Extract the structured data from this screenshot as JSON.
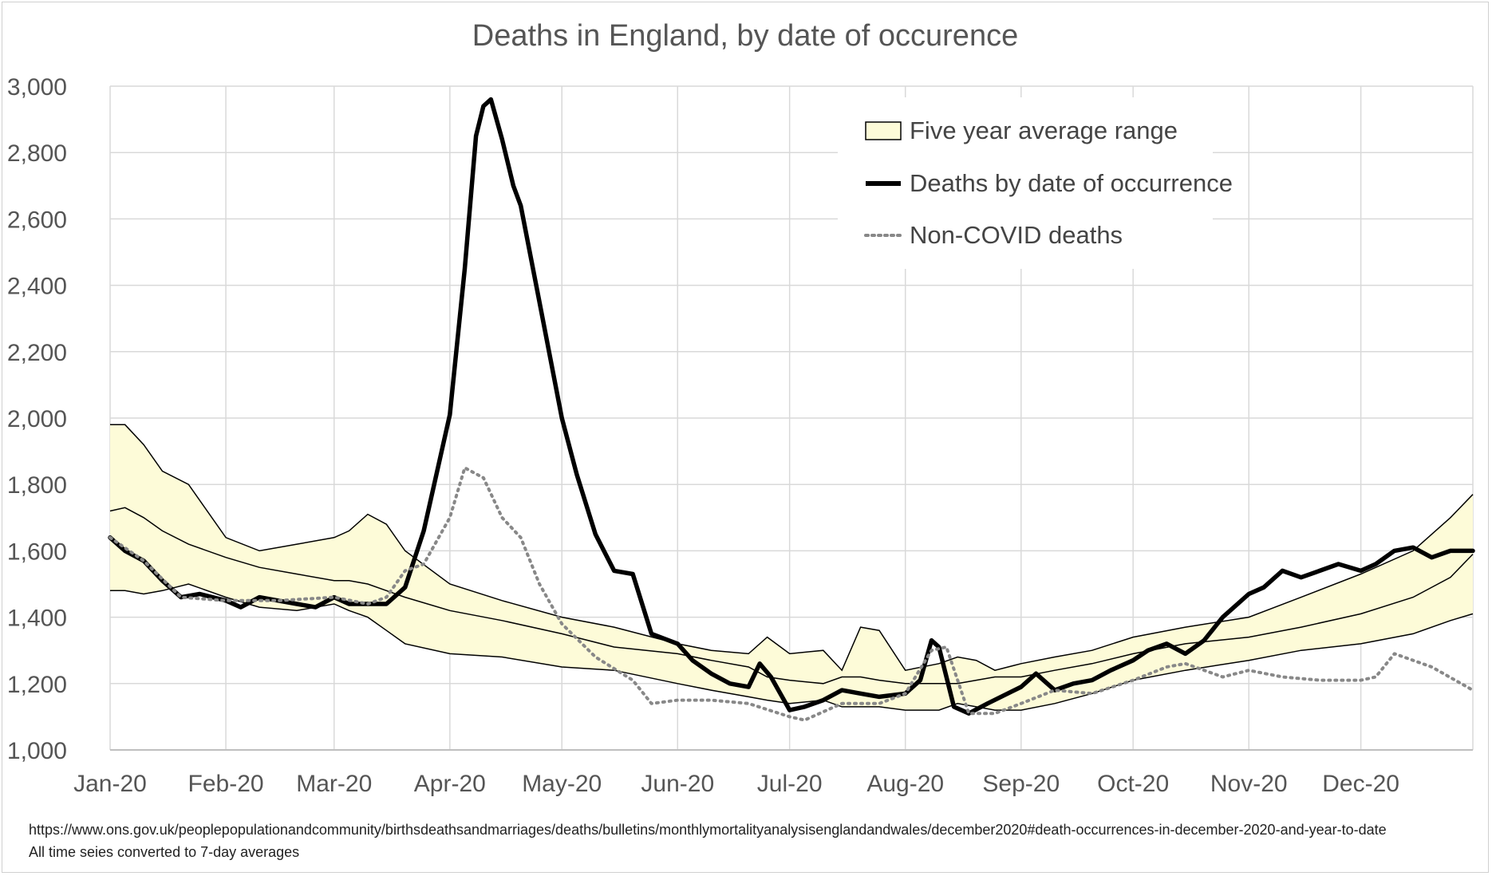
{
  "chart_data": {
    "type": "line",
    "title": "Deaths in England, by date of occurence",
    "xlabel": "",
    "ylabel": "",
    "ylim": [
      1000,
      3000
    ],
    "yticks": [
      1000,
      1200,
      1400,
      1600,
      1800,
      2000,
      2200,
      2400,
      2600,
      2800,
      3000
    ],
    "ytick_labels": [
      "1,000",
      "1,200",
      "1,400",
      "1,600",
      "1,800",
      "2,000",
      "2,200",
      "2,400",
      "2,600",
      "2,800",
      "3,000"
    ],
    "xlim": [
      "2020-01-01",
      "2020-12-31"
    ],
    "xtick_dates": [
      "2020-01-01",
      "2020-02-01",
      "2020-03-01",
      "2020-04-01",
      "2020-05-01",
      "2020-06-01",
      "2020-07-01",
      "2020-08-01",
      "2020-09-01",
      "2020-10-01",
      "2020-11-01",
      "2020-12-01"
    ],
    "xtick_labels": [
      "Jan-20",
      "Feb-20",
      "Mar-20",
      "Apr-20",
      "May-20",
      "Jun-20",
      "Jul-20",
      "Aug-20",
      "Sep-20",
      "Oct-20",
      "Nov-20",
      "Dec-20"
    ],
    "grid": true,
    "legend_position": "top-right",
    "legend": [
      {
        "label": "Five year average range",
        "style": "band"
      },
      {
        "label": "Deaths by date of occurrence",
        "style": "solid"
      },
      {
        "label": "Non-COVID deaths",
        "style": "dotted"
      }
    ],
    "colors": {
      "band_fill": "#fdfbd8",
      "band_edge": "#000000",
      "deaths": "#000000",
      "non_covid": "#888888",
      "grid": "#d9d9d9"
    },
    "series": [
      {
        "name": "Five year average range",
        "kind": "band",
        "x": [
          "2020-01-01",
          "2020-01-05",
          "2020-01-10",
          "2020-01-15",
          "2020-01-22",
          "2020-02-01",
          "2020-02-10",
          "2020-02-20",
          "2020-03-01",
          "2020-03-05",
          "2020-03-10",
          "2020-03-15",
          "2020-03-20",
          "2020-04-01",
          "2020-04-15",
          "2020-05-01",
          "2020-05-15",
          "2020-06-01",
          "2020-06-10",
          "2020-06-20",
          "2020-06-25",
          "2020-07-01",
          "2020-07-10",
          "2020-07-15",
          "2020-07-20",
          "2020-07-25",
          "2020-08-01",
          "2020-08-10",
          "2020-08-15",
          "2020-08-20",
          "2020-08-25",
          "2020-09-01",
          "2020-09-10",
          "2020-09-20",
          "2020-10-01",
          "2020-10-15",
          "2020-11-01",
          "2020-11-15",
          "2020-12-01",
          "2020-12-15",
          "2020-12-25",
          "2020-12-31"
        ],
        "upper": [
          1980,
          1980,
          1920,
          1840,
          1800,
          1640,
          1600,
          1620,
          1640,
          1660,
          1710,
          1680,
          1600,
          1500,
          1450,
          1400,
          1370,
          1320,
          1300,
          1290,
          1340,
          1290,
          1300,
          1240,
          1370,
          1360,
          1240,
          1260,
          1280,
          1270,
          1240,
          1260,
          1280,
          1300,
          1340,
          1370,
          1400,
          1460,
          1530,
          1600,
          1700,
          1770
        ],
        "middle": [
          1720,
          1730,
          1700,
          1660,
          1620,
          1580,
          1550,
          1530,
          1510,
          1510,
          1500,
          1480,
          1460,
          1420,
          1390,
          1350,
          1310,
          1290,
          1270,
          1250,
          1220,
          1210,
          1200,
          1220,
          1220,
          1210,
          1200,
          1200,
          1200,
          1210,
          1220,
          1220,
          1240,
          1260,
          1290,
          1320,
          1340,
          1370,
          1410,
          1460,
          1520,
          1590
        ],
        "lower": [
          1480,
          1480,
          1470,
          1480,
          1500,
          1460,
          1430,
          1420,
          1440,
          1420,
          1400,
          1360,
          1320,
          1290,
          1280,
          1250,
          1240,
          1200,
          1180,
          1160,
          1150,
          1140,
          1150,
          1130,
          1130,
          1130,
          1120,
          1120,
          1140,
          1130,
          1120,
          1120,
          1140,
          1170,
          1210,
          1240,
          1270,
          1300,
          1320,
          1350,
          1390,
          1410
        ]
      },
      {
        "name": "Deaths by date of occurrence",
        "kind": "line",
        "x": [
          "2020-01-01",
          "2020-01-05",
          "2020-01-10",
          "2020-01-15",
          "2020-01-20",
          "2020-01-25",
          "2020-02-01",
          "2020-02-05",
          "2020-02-10",
          "2020-02-15",
          "2020-02-20",
          "2020-02-25",
          "2020-03-01",
          "2020-03-05",
          "2020-03-10",
          "2020-03-15",
          "2020-03-20",
          "2020-03-25",
          "2020-04-01",
          "2020-04-05",
          "2020-04-08",
          "2020-04-10",
          "2020-04-12",
          "2020-04-15",
          "2020-04-18",
          "2020-04-20",
          "2020-04-25",
          "2020-05-01",
          "2020-05-05",
          "2020-05-10",
          "2020-05-15",
          "2020-05-20",
          "2020-05-25",
          "2020-06-01",
          "2020-06-05",
          "2020-06-10",
          "2020-06-15",
          "2020-06-20",
          "2020-06-23",
          "2020-06-26",
          "2020-07-01",
          "2020-07-05",
          "2020-07-10",
          "2020-07-15",
          "2020-07-20",
          "2020-07-25",
          "2020-08-01",
          "2020-08-05",
          "2020-08-08",
          "2020-08-10",
          "2020-08-14",
          "2020-08-18",
          "2020-08-23",
          "2020-09-01",
          "2020-09-05",
          "2020-09-10",
          "2020-09-15",
          "2020-09-20",
          "2020-09-25",
          "2020-10-01",
          "2020-10-05",
          "2020-10-10",
          "2020-10-15",
          "2020-10-20",
          "2020-10-25",
          "2020-11-01",
          "2020-11-05",
          "2020-11-10",
          "2020-11-15",
          "2020-11-20",
          "2020-11-25",
          "2020-12-01",
          "2020-12-05",
          "2020-12-10",
          "2020-12-15",
          "2020-12-20",
          "2020-12-25",
          "2020-12-31"
        ],
        "values": [
          1640,
          1600,
          1570,
          1510,
          1460,
          1470,
          1450,
          1430,
          1460,
          1450,
          1440,
          1430,
          1460,
          1440,
          1440,
          1440,
          1490,
          1660,
          2010,
          2450,
          2850,
          2940,
          2960,
          2840,
          2700,
          2640,
          2350,
          2000,
          1830,
          1650,
          1540,
          1530,
          1350,
          1320,
          1270,
          1230,
          1200,
          1190,
          1260,
          1220,
          1120,
          1130,
          1150,
          1180,
          1170,
          1160,
          1170,
          1210,
          1330,
          1310,
          1130,
          1110,
          1140,
          1190,
          1230,
          1180,
          1200,
          1210,
          1240,
          1270,
          1300,
          1320,
          1290,
          1330,
          1400,
          1470,
          1490,
          1540,
          1520,
          1540,
          1560,
          1540,
          1560,
          1600,
          1610,
          1580,
          1600,
          1600
        ]
      },
      {
        "name": "Non-COVID deaths",
        "kind": "line",
        "x": [
          "2020-01-01",
          "2020-01-10",
          "2020-01-20",
          "2020-02-01",
          "2020-02-15",
          "2020-03-01",
          "2020-03-10",
          "2020-03-15",
          "2020-03-20",
          "2020-03-25",
          "2020-04-01",
          "2020-04-05",
          "2020-04-10",
          "2020-04-15",
          "2020-04-20",
          "2020-04-25",
          "2020-05-01",
          "2020-05-10",
          "2020-05-20",
          "2020-05-25",
          "2020-06-01",
          "2020-06-10",
          "2020-06-20",
          "2020-07-01",
          "2020-07-05",
          "2020-07-15",
          "2020-07-25",
          "2020-08-01",
          "2020-08-08",
          "2020-08-12",
          "2020-08-18",
          "2020-08-25",
          "2020-09-01",
          "2020-09-10",
          "2020-09-20",
          "2020-10-01",
          "2020-10-10",
          "2020-10-15",
          "2020-10-25",
          "2020-11-01",
          "2020-11-10",
          "2020-11-20",
          "2020-12-01",
          "2020-12-05",
          "2020-12-10",
          "2020-12-20",
          "2020-12-31"
        ],
        "values": [
          1640,
          1570,
          1460,
          1450,
          1450,
          1460,
          1440,
          1460,
          1540,
          1560,
          1700,
          1850,
          1820,
          1700,
          1640,
          1500,
          1380,
          1280,
          1210,
          1140,
          1150,
          1150,
          1140,
          1100,
          1090,
          1140,
          1140,
          1170,
          1300,
          1310,
          1110,
          1110,
          1140,
          1180,
          1170,
          1210,
          1250,
          1260,
          1220,
          1240,
          1220,
          1210,
          1210,
          1220,
          1290,
          1250,
          1180
        ]
      }
    ],
    "source_note": "https://www.ons.gov.uk/peoplepopulationandcommunity/birthsdeathsandmarriages/deaths/bulletins/monthlymortalityanalysisenglandandwales/december2020#death-occurrences-in-december-2020-and-year-to-date",
    "method_note": "All time seies converted to 7-day averages"
  }
}
